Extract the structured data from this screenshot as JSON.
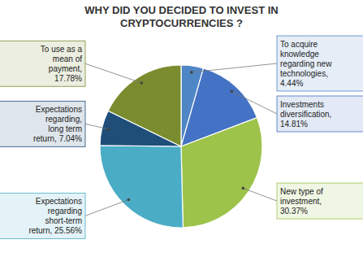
{
  "chart_data": {
    "type": "pie",
    "title": "WHY DID YOU DECIDED TO INVEST IN\nCRYPTOCURRENCIES ?",
    "categories": [
      "To acquire\nknowledge\nregarding new\ntechnologies,\n4.44%",
      "Investments\ndiversification,\n14.81%",
      "New type of\ninvestment,\n30.37%",
      "Expectations\nregarding\nshort-term\nreturn, 25.56%",
      "Expectations\nregarding,\nlong term\nreturn, 7.04%",
      "To use as a\nmean of\npayment,\n17.78%"
    ],
    "values": [
      4.44,
      14.81,
      30.37,
      25.56,
      7.04,
      17.78
    ],
    "colors": [
      "#4f86c6",
      "#4472c4",
      "#9dc34a",
      "#4bacc6",
      "#1f4e79",
      "#7a8c2e"
    ]
  }
}
